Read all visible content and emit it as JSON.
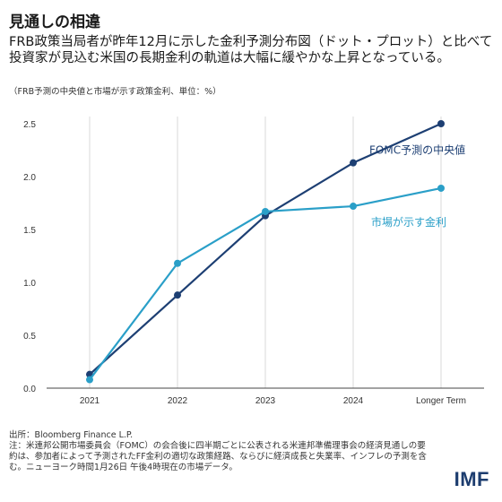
{
  "header": {
    "title": "見通しの相違",
    "subtitle": "FRB政策当局者が昨年12月に示した金利予測分布図（ドット・プロット）と比べて投資家が見込む米国の長期金利の軌道は大幅に緩やかな上昇となっている。",
    "note": "（FRB予測の中央値と市場が示す政策金利、単位：%）"
  },
  "footer": {
    "source": "出所：Bloomberg Finance L.P.",
    "note": "注：米連邦公開市場委員会（FOMC）の会合後に四半期ごとに公表される米連邦準備理事会の経済見通しの要約は、参加者によって予測されたFF金利の適切な政策経路、ならびに経済成長と失業率、インフレの予測を含む。ニューヨーク時間1月26日 午後4時現在の市場データ。"
  },
  "logo": "IMF",
  "colors": {
    "fomc": "#1d3f73",
    "market": "#2a9fc8",
    "grid": "#d9d9d9"
  },
  "chart_data": {
    "type": "line",
    "categories": [
      "2021",
      "2022",
      "2023",
      "2024",
      "Longer Term"
    ],
    "series": [
      {
        "name": "FOMC予測の中央値",
        "values": [
          0.13,
          0.88,
          1.63,
          2.13,
          2.5
        ]
      },
      {
        "name": "市場が示す金利",
        "values": [
          0.08,
          1.18,
          1.67,
          1.72,
          1.89
        ]
      }
    ],
    "ylim": [
      0,
      2.5
    ],
    "yticks": [
      "0.0",
      "0.5",
      "1.0",
      "1.5",
      "2.0",
      "2.5"
    ],
    "grid": true,
    "legend": "inline labels"
  }
}
